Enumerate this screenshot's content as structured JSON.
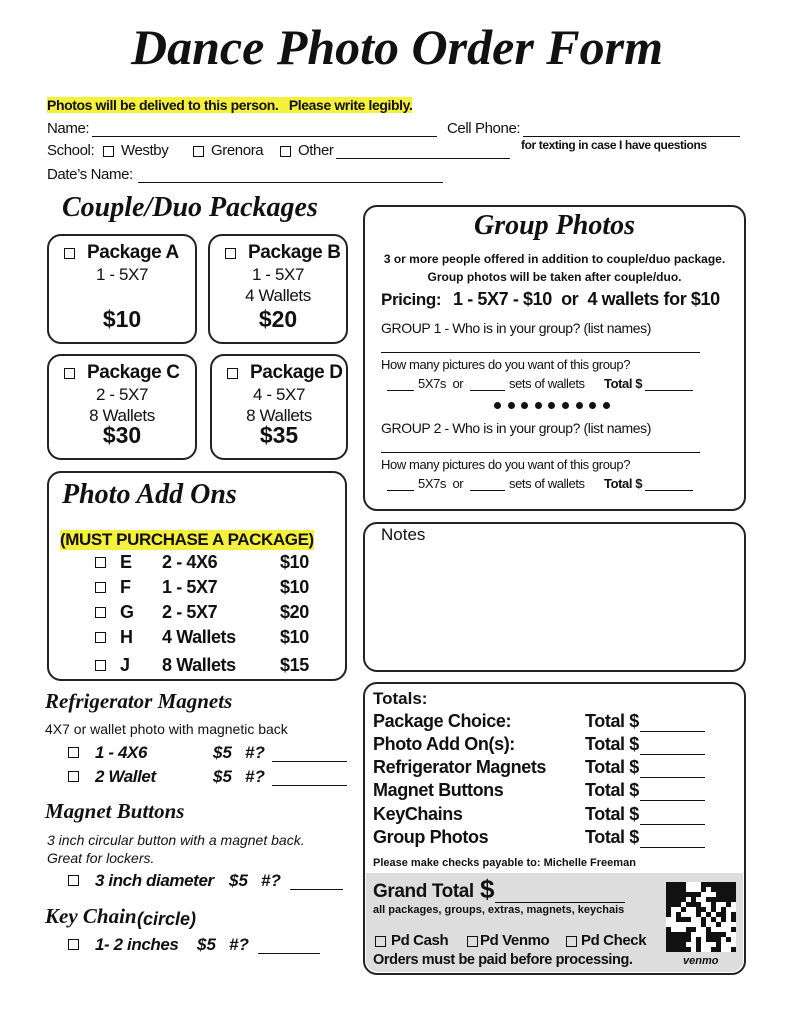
{
  "title": "Dance Photo Order Form",
  "notice": "Photos will be delived to this person.   Please write legibly.",
  "fields": {
    "name": "Name:",
    "cell_phone": "Cell Phone:",
    "school": "School:",
    "school_options": [
      "Westby",
      "Grenora",
      "Other"
    ],
    "texting_note": "for texting in case I have questions",
    "dates_name": "Date’s Name:"
  },
  "packages": {
    "title": "Couple/Duo Packages",
    "items": [
      {
        "name": "Package A",
        "contents": [
          "1 - 5X7"
        ],
        "price": "$10"
      },
      {
        "name": "Package B",
        "contents": [
          "1 - 5X7",
          "4 Wallets"
        ],
        "price": "$20"
      },
      {
        "name": "Package C",
        "contents": [
          "2 - 5X7",
          "8 Wallets"
        ],
        "price": "$30"
      },
      {
        "name": "Package D",
        "contents": [
          "4 - 5X7",
          "8 Wallets"
        ],
        "price": "$35"
      }
    ]
  },
  "add_ons": {
    "title": "Photo Add Ons",
    "note": "(MUST PURCHASE A PACKAGE)",
    "items": [
      {
        "code": "E",
        "desc": "2 - 4X6",
        "price": "$10"
      },
      {
        "code": "F",
        "desc": "1 - 5X7",
        "price": "$10"
      },
      {
        "code": "G",
        "desc": "2 - 5X7",
        "price": "$20"
      },
      {
        "code": "H",
        "desc": "4 Wallets",
        "price": "$10"
      },
      {
        "code": "J",
        "desc": "8 Wallets",
        "price": "$15"
      }
    ]
  },
  "magnets": {
    "title": "Refrigerator Magnets",
    "desc": "4X7 or wallet photo with magnetic back",
    "items": [
      {
        "label": "1 - 4X6",
        "price": "$5",
        "qty": "#?"
      },
      {
        "label": "2 Wallet",
        "price": "$5",
        "qty": "#?"
      }
    ]
  },
  "buttons": {
    "title": "Magnet Buttons",
    "desc": [
      "3 inch circular button with a magnet back.",
      "Great for lockers."
    ],
    "items": [
      {
        "label": "3 inch diameter",
        "price": "$5",
        "qty": "#?"
      }
    ]
  },
  "keychain": {
    "title": "Key Chain",
    "subtitle": "(circle)",
    "items": [
      {
        "label": "1- 2 inches",
        "price": "$5",
        "qty": "#?"
      }
    ]
  },
  "group_photos": {
    "title": "Group Photos",
    "intro": [
      "3 or more people offered in addition to couple/duo package.",
      "Group photos will be taken after couple/duo."
    ],
    "pricing_label": "Pricing:",
    "pricing": "1 - 5X7 - $10  or  4 wallets for $10",
    "groups": [
      {
        "prompt": "GROUP 1 - Who is in your group? (list names)",
        "question": "How many pictures do you want of this group?",
        "fivebyseven": "5X7s  or",
        "wallets": "sets of wallets",
        "total": "Total $"
      },
      {
        "prompt": "GROUP 2 - Who is in your group? (list names)",
        "question": "How many pictures do you want of this group?",
        "fivebyseven": "5X7s  or",
        "wallets": "sets of wallets",
        "total": "Total $"
      }
    ]
  },
  "notes": {
    "title": "Notes"
  },
  "totals": {
    "title": "Totals:",
    "rows": [
      {
        "label": "Package Choice:",
        "total": "Total $"
      },
      {
        "label": "Photo Add On(s):",
        "total": "Total $"
      },
      {
        "label": "Refrigerator Magnets",
        "total": "Total $"
      },
      {
        "label": "Magnet Buttons",
        "total": "Total $"
      },
      {
        "label": "KeyChains",
        "total": "Total $"
      },
      {
        "label": "Group Photos",
        "total": "Total $"
      }
    ],
    "checks": "Please make checks payable to: Michelle Freeman",
    "grand_total": "Grand Total",
    "grand_currency": "$",
    "grand_note": "all packages, groups, extras, magnets, keychais",
    "payment": [
      "Pd Cash",
      "Pd Venmo",
      "Pd Check"
    ],
    "processing": "Orders must be paid before processing.",
    "venmo": "venmo"
  }
}
